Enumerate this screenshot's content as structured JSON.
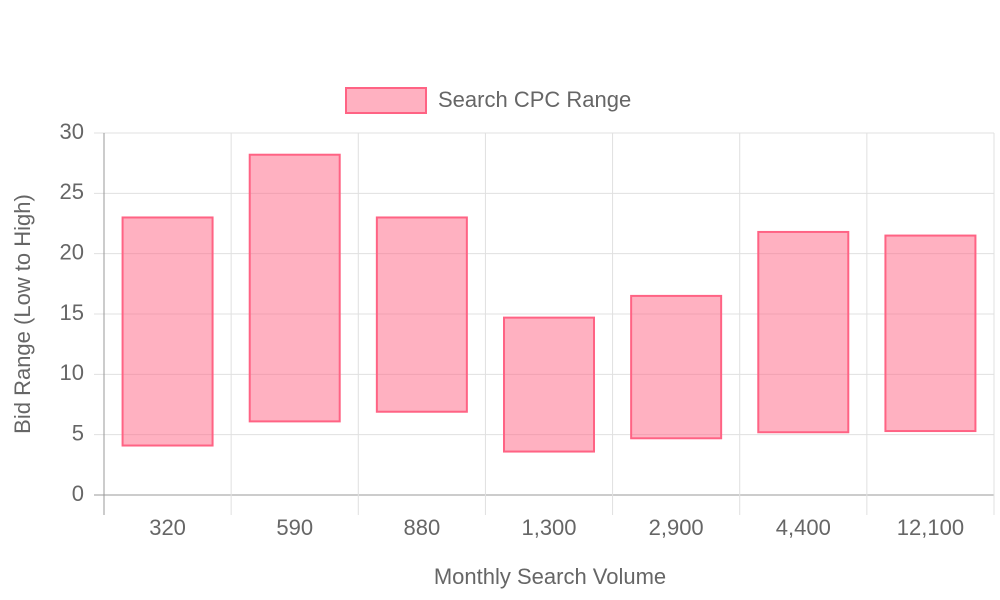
{
  "chart_data": {
    "type": "floating-bar",
    "x_label": "Monthly Search Volume",
    "y_label": "Bid Range (Low to High)",
    "categories": [
      "320",
      "590",
      "880",
      "1,300",
      "2,900",
      "4,400",
      "12,100"
    ],
    "series": [
      {
        "name": "Search CPC Range",
        "color": "#ff6384",
        "values": [
          [
            4.1,
            23
          ],
          [
            6.1,
            28.2
          ],
          [
            6.9,
            23
          ],
          [
            3.6,
            14.7
          ],
          [
            4.7,
            16.5
          ],
          [
            5.2,
            21.8
          ],
          [
            5.3,
            21.5
          ]
        ]
      }
    ],
    "ylim": [
      0,
      30
    ],
    "yticks": [
      0,
      5,
      10,
      15,
      20,
      25,
      30
    ],
    "grid": true,
    "legend": "top"
  }
}
